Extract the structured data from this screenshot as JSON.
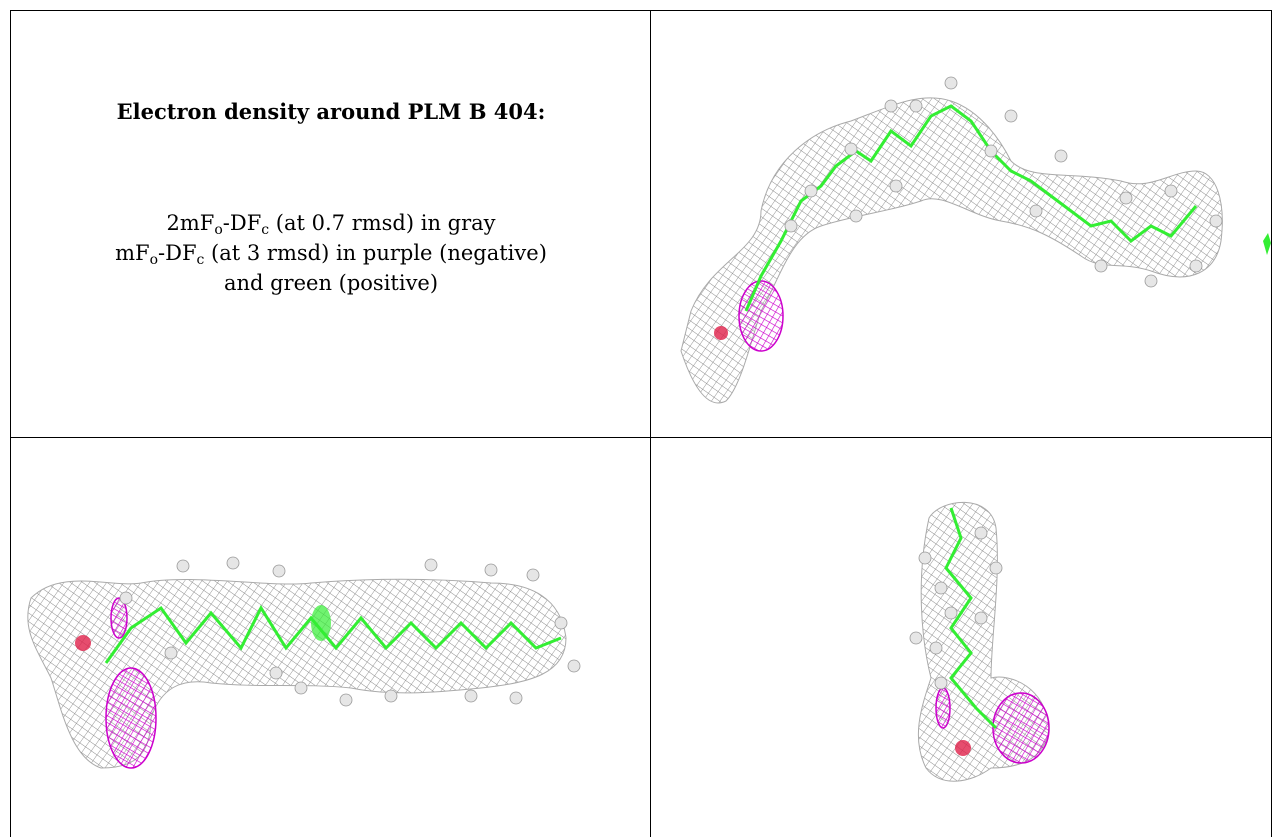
{
  "figure": {
    "title": "Electron density around PLM B 404:",
    "caption": {
      "line1_pre": "2mF",
      "line1_sub1": "o",
      "line1_mid": "-DF",
      "line1_sub2": "c",
      "line1_post": " (at 0.7 rmsd) in gray",
      "line2_pre": "mF",
      "line2_sub1": "o",
      "line2_mid": "-DF",
      "line2_sub2": "c",
      "line2_post": " (at 3 rmsd) in purple (negative)",
      "line3": "and green (positive)"
    },
    "colors": {
      "mesh_gray": "#9a9a9a",
      "negative_purple": "#cc00cc",
      "positive_green": "#33ee33",
      "atom_white": "#e6e6e6",
      "oxygen_red": "#e0204a"
    }
  }
}
